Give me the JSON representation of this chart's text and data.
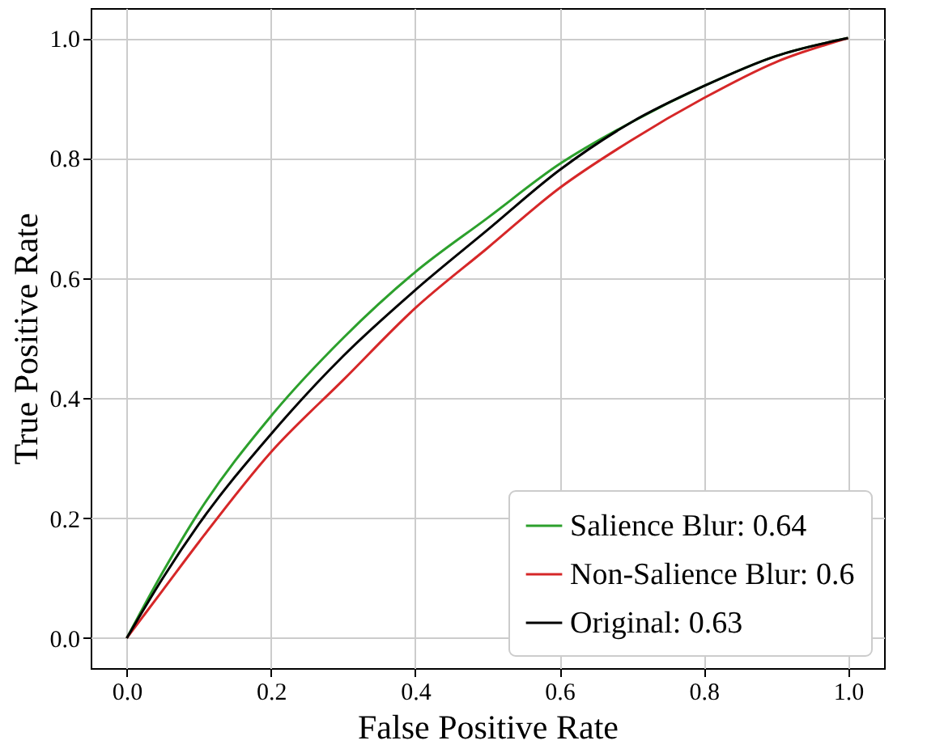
{
  "chart_data": {
    "type": "line",
    "xlabel": "False Positive Rate",
    "ylabel": "True Positive Rate",
    "xlim": [
      -0.05,
      1.05
    ],
    "ylim": [
      -0.05,
      1.05
    ],
    "xticks": [
      {
        "value": 0,
        "label": "0.0"
      },
      0.2,
      0.4,
      0.6,
      0.8,
      {
        "value": 1,
        "label": "1.0"
      }
    ],
    "yticks": [
      {
        "value": 0,
        "label": "0.0"
      },
      0.2,
      0.4,
      0.6,
      0.8,
      {
        "value": 1,
        "label": "1.0"
      }
    ],
    "grid": true,
    "legend": "bottom right",
    "line_style": "solid",
    "series": [
      {
        "name": "Salience Blur: 0.64",
        "color": "#2ca02c",
        "x": [
          0,
          0.05,
          0.1,
          0.2,
          0.3,
          0.4,
          0.5,
          0.6,
          0.7,
          0.8,
          0.9,
          1
        ],
        "values": [
          0,
          0.11,
          0.21,
          0.37,
          0.5,
          0.61,
          0.7,
          0.79,
          0.86,
          0.92,
          0.97,
          1
        ]
      },
      {
        "name": "Non-Salience Blur: 0.6",
        "color": "#d62728",
        "x": [
          0,
          0.05,
          0.1,
          0.2,
          0.3,
          0.4,
          0.5,
          0.6,
          0.7,
          0.8,
          0.9,
          1
        ],
        "values": [
          0,
          0.08,
          0.16,
          0.31,
          0.43,
          0.55,
          0.65,
          0.75,
          0.83,
          0.9,
          0.96,
          1
        ]
      },
      {
        "name": "Original: 0.63",
        "color": "#000000",
        "x": [
          0,
          0.05,
          0.1,
          0.2,
          0.3,
          0.4,
          0.5,
          0.6,
          0.7,
          0.8,
          0.9,
          1
        ],
        "values": [
          0,
          0.1,
          0.19,
          0.34,
          0.47,
          0.58,
          0.68,
          0.78,
          0.86,
          0.92,
          0.97,
          1
        ]
      }
    ]
  }
}
